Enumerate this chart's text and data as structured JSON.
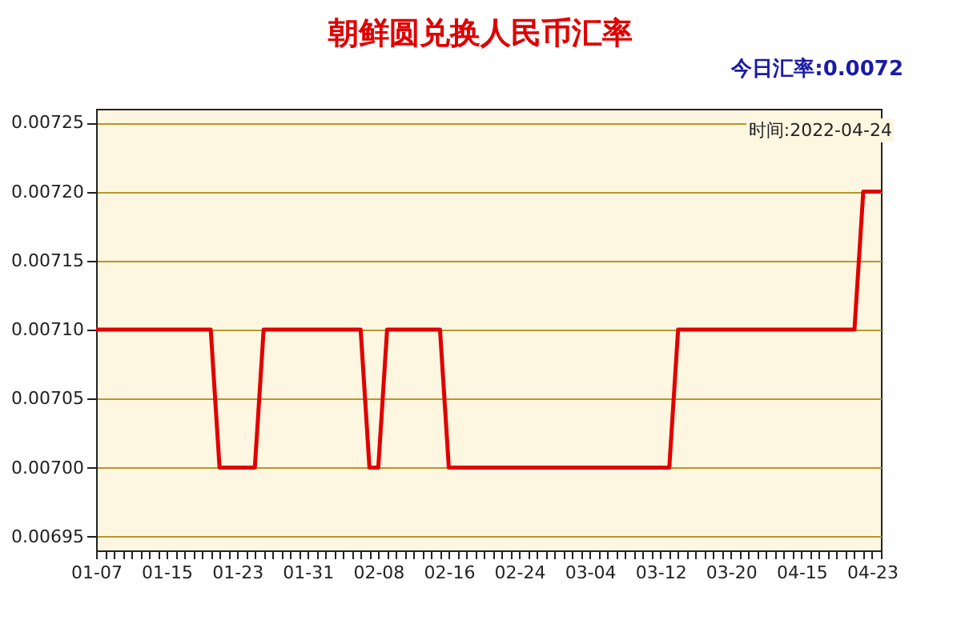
{
  "chart_data": {
    "type": "line",
    "title": "朝鲜圆兑换人民币汇率",
    "annotations": [
      "今日汇率:0.0072",
      "时间:2022-04-24"
    ],
    "categories": [
      "01-07",
      null,
      null,
      null,
      null,
      null,
      null,
      null,
      "01-15",
      null,
      null,
      null,
      null,
      null,
      null,
      null,
      "01-23",
      null,
      null,
      null,
      null,
      null,
      null,
      null,
      "01-31",
      null,
      null,
      null,
      null,
      null,
      null,
      null,
      "02-08",
      null,
      null,
      null,
      null,
      null,
      null,
      null,
      "02-16",
      null,
      null,
      null,
      null,
      null,
      null,
      null,
      "02-24",
      null,
      null,
      null,
      null,
      null,
      null,
      null,
      "03-04",
      null,
      null,
      null,
      null,
      null,
      null,
      null,
      "03-12",
      null,
      null,
      null,
      null,
      null,
      null,
      null,
      "03-20",
      null,
      null,
      null,
      null,
      null,
      null,
      null,
      "04-15",
      null,
      null,
      null,
      null,
      null,
      null,
      null,
      "04-23",
      null
    ],
    "series": [
      {
        "color": "#e00000",
        "values": [
          0.0071,
          0.0071,
          0.0071,
          0.0071,
          0.0071,
          0.0071,
          0.0071,
          0.0071,
          0.0071,
          0.0071,
          0.0071,
          0.0071,
          0.0071,
          0.0071,
          0.007,
          0.007,
          0.007,
          0.007,
          0.007,
          0.0071,
          0.0071,
          0.0071,
          0.0071,
          0.0071,
          0.0071,
          0.0071,
          0.0071,
          0.0071,
          0.0071,
          0.0071,
          0.0071,
          0.007,
          0.007,
          0.0071,
          0.0071,
          0.0071,
          0.0071,
          0.0071,
          0.0071,
          0.0071,
          0.007,
          0.007,
          0.007,
          0.007,
          0.007,
          0.007,
          0.007,
          0.007,
          0.007,
          0.007,
          0.007,
          0.007,
          0.007,
          0.007,
          0.007,
          0.007,
          0.007,
          0.007,
          0.007,
          0.007,
          0.007,
          0.007,
          0.007,
          0.007,
          0.007,
          0.007,
          0.0071,
          0.0071,
          0.0071,
          0.0071,
          0.0071,
          0.0071,
          0.0071,
          0.0071,
          0.0071,
          0.0071,
          0.0071,
          0.0071,
          0.0071,
          0.0071,
          0.0071,
          0.0071,
          0.0071,
          0.0071,
          0.0071,
          0.0071,
          0.0071,
          0.0072,
          0.0072,
          0.0072
        ]
      }
    ],
    "ylim": [
      0.00694,
      0.00726
    ],
    "yticks": [
      0.00695,
      {
        "value": 0.007,
        "label": "0.00700"
      },
      0.00705,
      {
        "value": 0.0071,
        "label": "0.00710"
      },
      0.00715,
      {
        "value": 0.0072,
        "label": "0.00720"
      },
      0.00725
    ],
    "grid": "y",
    "marker": "none",
    "line_style": "solid"
  }
}
